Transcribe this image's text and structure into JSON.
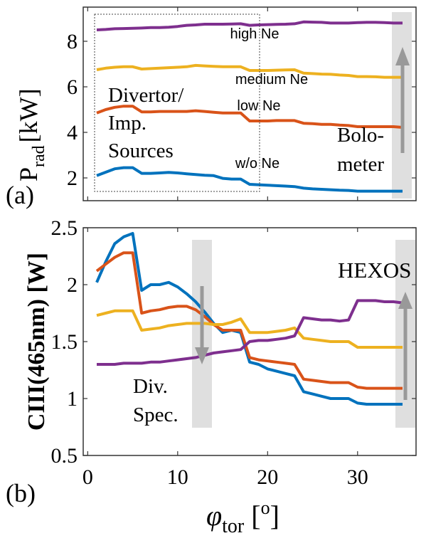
{
  "chart_data": [
    {
      "panel_label": "(a)",
      "type": "line",
      "ylabel": "P",
      "ylabel_sub": "rad",
      "ylabel_unit": "[kW]",
      "xlim": [
        -0.5,
        36.5
      ],
      "ylim": [
        1.0,
        9.5
      ],
      "xticks": [
        0,
        10,
        20,
        30
      ],
      "yticks": [
        2,
        4,
        6,
        8
      ],
      "ytick_labels": [
        "2",
        "4",
        "6",
        "8"
      ],
      "grid": false,
      "series": [
        {
          "name": "high Ne",
          "color": "#7E2F8E",
          "x": [
            1,
            2,
            3,
            4,
            5,
            6,
            7,
            8,
            9,
            10,
            11,
            12,
            13,
            14,
            15,
            16,
            17,
            18,
            19,
            20,
            21,
            22,
            23,
            24,
            25,
            26,
            27,
            28,
            29,
            30,
            31,
            32,
            33,
            34,
            35
          ],
          "y": [
            8.5,
            8.52,
            8.55,
            8.56,
            8.57,
            8.58,
            8.6,
            8.6,
            8.62,
            8.65,
            8.7,
            8.72,
            8.75,
            8.75,
            8.75,
            8.76,
            8.77,
            8.7,
            8.72,
            8.73,
            8.74,
            8.75,
            8.77,
            8.85,
            8.84,
            8.83,
            8.8,
            8.8,
            8.8,
            8.82,
            8.83,
            8.83,
            8.82,
            8.8,
            8.8
          ]
        },
        {
          "name": "medium Ne",
          "color": "#EDB120",
          "x": [
            1,
            2,
            3,
            4,
            5,
            6,
            7,
            8,
            9,
            10,
            11,
            12,
            13,
            14,
            15,
            16,
            17,
            18,
            19,
            20,
            21,
            22,
            23,
            24,
            25,
            26,
            27,
            28,
            29,
            30,
            31,
            32,
            33,
            34,
            35
          ],
          "y": [
            6.75,
            6.82,
            6.86,
            6.88,
            6.88,
            6.78,
            6.8,
            6.82,
            6.84,
            6.86,
            6.88,
            6.94,
            6.92,
            6.9,
            6.88,
            6.88,
            6.88,
            6.72,
            6.72,
            6.72,
            6.73,
            6.74,
            6.75,
            6.6,
            6.58,
            6.56,
            6.55,
            6.52,
            6.5,
            6.45,
            6.45,
            6.44,
            6.42,
            6.42,
            6.42
          ]
        },
        {
          "name": "low Ne",
          "color": "#D95319",
          "x": [
            1,
            2,
            3,
            4,
            5,
            6,
            7,
            8,
            9,
            10,
            11,
            12,
            13,
            14,
            15,
            16,
            17,
            18,
            19,
            20,
            21,
            22,
            23,
            24,
            25,
            26,
            27,
            28,
            29,
            30,
            31,
            32,
            33,
            34,
            35
          ],
          "y": [
            4.85,
            5.0,
            5.1,
            5.15,
            5.15,
            4.9,
            4.9,
            4.92,
            4.92,
            4.92,
            4.92,
            4.95,
            4.92,
            4.88,
            4.85,
            4.85,
            4.85,
            4.5,
            4.5,
            4.5,
            4.52,
            4.52,
            4.52,
            4.4,
            4.38,
            4.35,
            4.35,
            4.32,
            4.3,
            4.25,
            4.25,
            4.25,
            4.25,
            4.25,
            4.22
          ]
        },
        {
          "name": "w/o Ne",
          "color": "#0072BD",
          "x": [
            1,
            2,
            3,
            4,
            5,
            6,
            7,
            8,
            9,
            10,
            11,
            12,
            13,
            14,
            15,
            16,
            17,
            18,
            19,
            20,
            21,
            22,
            23,
            24,
            25,
            26,
            27,
            28,
            29,
            30,
            31,
            32,
            33,
            34,
            35
          ],
          "y": [
            2.1,
            2.25,
            2.4,
            2.45,
            2.45,
            2.2,
            2.2,
            2.22,
            2.24,
            2.22,
            2.18,
            2.15,
            2.12,
            2.1,
            1.98,
            1.95,
            1.95,
            1.72,
            1.7,
            1.68,
            1.66,
            1.64,
            1.62,
            1.55,
            1.52,
            1.5,
            1.48,
            1.46,
            1.45,
            1.42,
            1.42,
            1.42,
            1.42,
            1.42,
            1.42
          ]
        }
      ],
      "annotations": {
        "series_labels": [
          "high Ne",
          "medium Ne",
          "low Ne",
          "w/o Ne"
        ],
        "region_text": [
          "Divertor/",
          "Imp.",
          "Sources"
        ],
        "arrow_text": [
          "Bolo-",
          "meter"
        ]
      }
    },
    {
      "panel_label": "(b)",
      "type": "line",
      "ylabel": "CIII(465nm) [W]",
      "xlabel_symbol": "φ",
      "xlabel_sub": "tor",
      "xlabel_unit_open": "[",
      "xlabel_unit_sup": "o",
      "xlabel_unit_close": "]",
      "xlim": [
        -0.5,
        36.5
      ],
      "ylim": [
        0.5,
        2.5
      ],
      "xticks": [
        0,
        10,
        20,
        30
      ],
      "xtick_labels": [
        "0",
        "10",
        "20",
        "30"
      ],
      "yticks": [
        0.5,
        1,
        1.5,
        2,
        2.5
      ],
      "ytick_labels": [
        "0.5",
        "1",
        "1.5",
        "2",
        "2.5"
      ],
      "grid": false,
      "series": [
        {
          "color": "#0072BD",
          "x": [
            1,
            2,
            3,
            4,
            5,
            6,
            7,
            8,
            9,
            10,
            11,
            12,
            13,
            14,
            15,
            16,
            17,
            18,
            19,
            20,
            21,
            22,
            23,
            24,
            25,
            26,
            27,
            28,
            29,
            30,
            31,
            32,
            33,
            34,
            35
          ],
          "y": [
            2.02,
            2.2,
            2.36,
            2.42,
            2.45,
            1.95,
            2.0,
            2.0,
            2.02,
            1.98,
            1.92,
            1.85,
            1.76,
            1.66,
            1.58,
            1.6,
            1.58,
            1.32,
            1.3,
            1.26,
            1.24,
            1.22,
            1.2,
            1.06,
            1.04,
            1.02,
            1.0,
            1.0,
            1.0,
            0.96,
            0.95,
            0.95,
            0.95,
            0.95,
            0.95
          ]
        },
        {
          "color": "#D95319",
          "x": [
            1,
            2,
            3,
            4,
            5,
            6,
            7,
            8,
            9,
            10,
            11,
            12,
            13,
            14,
            15,
            16,
            17,
            18,
            19,
            20,
            21,
            22,
            23,
            24,
            25,
            26,
            27,
            28,
            29,
            30,
            31,
            32,
            33,
            34,
            35
          ],
          "y": [
            2.12,
            2.18,
            2.24,
            2.28,
            2.28,
            1.75,
            1.77,
            1.78,
            1.8,
            1.81,
            1.81,
            1.78,
            1.72,
            1.65,
            1.6,
            1.6,
            1.6,
            1.36,
            1.34,
            1.33,
            1.32,
            1.31,
            1.3,
            1.17,
            1.16,
            1.15,
            1.14,
            1.14,
            1.14,
            1.1,
            1.09,
            1.09,
            1.09,
            1.09,
            1.09
          ]
        },
        {
          "color": "#EDB120",
          "x": [
            1,
            2,
            3,
            4,
            5,
            6,
            7,
            8,
            9,
            10,
            11,
            12,
            13,
            14,
            15,
            16,
            17,
            18,
            19,
            20,
            21,
            22,
            23,
            24,
            25,
            26,
            27,
            28,
            29,
            30,
            31,
            32,
            33,
            34,
            35
          ],
          "y": [
            1.73,
            1.75,
            1.77,
            1.77,
            1.77,
            1.6,
            1.61,
            1.62,
            1.64,
            1.65,
            1.66,
            1.66,
            1.66,
            1.65,
            1.65,
            1.67,
            1.7,
            1.58,
            1.58,
            1.58,
            1.59,
            1.6,
            1.62,
            1.53,
            1.52,
            1.51,
            1.5,
            1.5,
            1.5,
            1.45,
            1.45,
            1.45,
            1.45,
            1.45,
            1.45
          ]
        },
        {
          "color": "#7E2F8E",
          "x": [
            1,
            2,
            3,
            4,
            5,
            6,
            7,
            8,
            9,
            10,
            11,
            12,
            13,
            14,
            15,
            16,
            17,
            18,
            19,
            20,
            21,
            22,
            23,
            24,
            25,
            26,
            27,
            28,
            29,
            30,
            31,
            32,
            33,
            34,
            35
          ],
          "y": [
            1.3,
            1.3,
            1.3,
            1.31,
            1.31,
            1.31,
            1.32,
            1.32,
            1.33,
            1.34,
            1.35,
            1.36,
            1.38,
            1.4,
            1.41,
            1.42,
            1.43,
            1.5,
            1.51,
            1.51,
            1.52,
            1.53,
            1.55,
            1.71,
            1.7,
            1.69,
            1.69,
            1.68,
            1.69,
            1.86,
            1.86,
            1.86,
            1.85,
            1.85,
            1.84
          ]
        }
      ],
      "annotations": {
        "arrow_text_right": [
          "HEXOS"
        ],
        "arrow_text_left": [
          "Div.",
          "Spec."
        ]
      }
    }
  ]
}
